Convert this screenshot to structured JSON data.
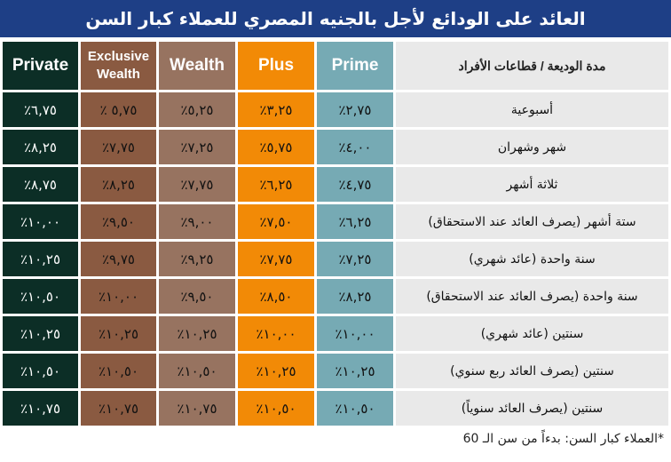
{
  "title": "العائد على الودائع لأجل بالجنيه المصري للعملاء كبار السن",
  "header": {
    "label": "مدة الوديعة / قطاعات الأفراد",
    "columns": [
      "Prime",
      "Plus",
      "Wealth",
      "Exclusive Wealth",
      "Private"
    ]
  },
  "colors": {
    "title_bg": "#1e3f86",
    "prime": "#76aab4",
    "plus": "#f28a06",
    "wealth": "#977360",
    "exclusive_wealth": "#8a5a41",
    "private": "#0c2e26",
    "label_bg": "#e9e9e9"
  },
  "rows": [
    {
      "label": "أسبوعية",
      "prime": "٪٢,٧٥",
      "plus": "٪٣,٢٥",
      "wealth": "٪٥,٢٥",
      "exclusive": "٪ ٥,٧٥",
      "private": "٪٦,٧٥"
    },
    {
      "label": "شهر وشهران",
      "prime": "٪٤,٠٠",
      "plus": "٪٥,٧٥",
      "wealth": "٪٧,٢٥",
      "exclusive": "٪٧,٧٥",
      "private": "٪٨,٢٥"
    },
    {
      "label": "ثلاثة أشهر",
      "prime": "٪٤,٧٥",
      "plus": "٪٦,٢٥",
      "wealth": "٪٧,٧٥",
      "exclusive": "٪٨,٢٥",
      "private": "٪٨,٧٥"
    },
    {
      "label": "ستة أشهر (يصرف العائد عند الاستحقاق)",
      "prime": "٪٦,٢٥",
      "plus": "٪٧,٥٠",
      "wealth": "٪٩,٠٠",
      "exclusive": "٪٩,٥٠",
      "private": "٪١٠,٠٠"
    },
    {
      "label": "سنة واحدة (عائد شهري)",
      "prime": "٪٧,٢٥",
      "plus": "٪٧,٧٥",
      "wealth": "٪٩,٢٥",
      "exclusive": "٪٩,٧٥",
      "private": "٪١٠,٢٥"
    },
    {
      "label": "سنة واحدة (يصرف العائد عند الاستحقاق)",
      "prime": "٪٨,٢٥",
      "plus": "٪٨,٥٠",
      "wealth": "٪٩,٥٠",
      "exclusive": "٪١٠,٠٠",
      "private": "٪١٠,٥٠"
    },
    {
      "label": "سنتين (عائد شهري)",
      "prime": "٪١٠,٠٠",
      "plus": "٪١٠,٠٠",
      "wealth": "٪١٠,٢٥",
      "exclusive": "٪١٠,٢٥",
      "private": "٪١٠,٢٥"
    },
    {
      "label": "سنتين (يصرف العائد ربع سنوي)",
      "prime": "٪١٠,٢٥",
      "plus": "٪١٠,٢٥",
      "wealth": "٪١٠,٥٠",
      "exclusive": "٪١٠,٥٠",
      "private": "٪١٠,٥٠"
    },
    {
      "label": "سنتين (يصرف العائد سنوياً)",
      "prime": "٪١٠,٥٠",
      "plus": "٪١٠,٥٠",
      "wealth": "٪١٠,٧٥",
      "exclusive": "٪١٠,٧٥",
      "private": "٪١٠,٧٥"
    }
  ],
  "footnote": "*العملاء كبار السن: بدءاً من سن الـ 60"
}
